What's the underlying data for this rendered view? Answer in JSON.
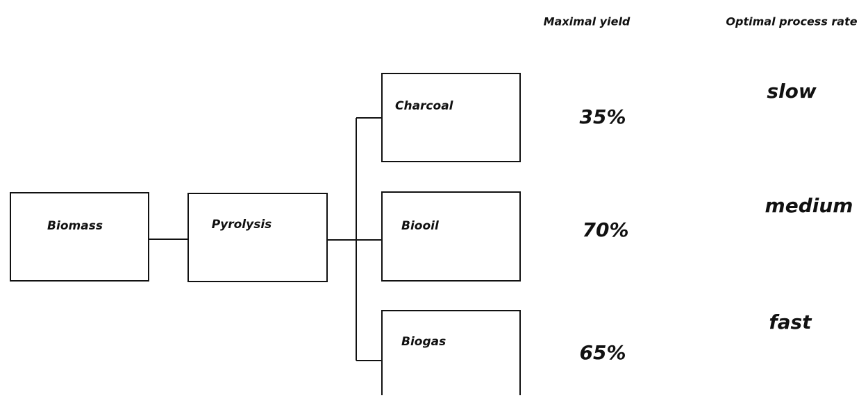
{
  "columns": {
    "yield": "Maximal yield",
    "rate": "Optimal process rate"
  },
  "nodes": [
    {
      "label": "Biomass"
    },
    {
      "label": "Pyrolysis"
    }
  ],
  "products": [
    {
      "label": "Charcoal",
      "yield": "35%",
      "rate": "slow"
    },
    {
      "label": "Biooil",
      "yield": "70%",
      "rate": "medium"
    },
    {
      "label": "Biogas",
      "yield": "65%",
      "rate": "fast"
    }
  ]
}
